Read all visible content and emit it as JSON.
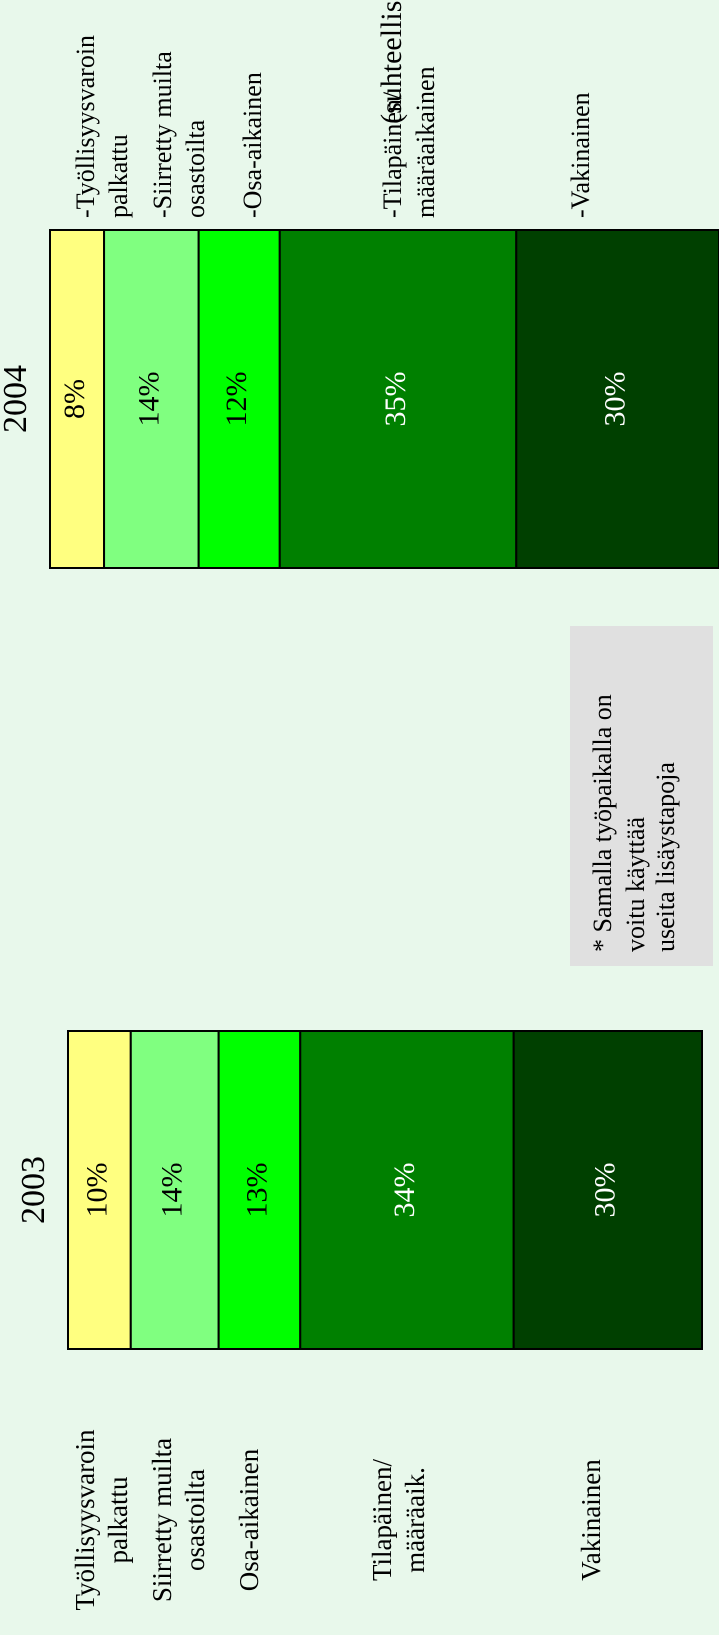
{
  "chart_data": {
    "type": "bar",
    "stacked": true,
    "orientation": "horizontal",
    "subtitle_fragment": "(suhteelliset osuudet)",
    "categories": [
      "2003",
      "2004"
    ],
    "series": [
      {
        "name": "Työllisyysvaroin palkattu",
        "values": [
          10,
          8
        ],
        "color": "#ffff80"
      },
      {
        "name": "Siirretty muilta osastoilta",
        "values": [
          14,
          14
        ],
        "color": "#80ff80"
      },
      {
        "name": "Osa-aikainen",
        "values": [
          13,
          12
        ],
        "color": "#00ff00"
      },
      {
        "name": "Tilapäinen/ määräaik.",
        "values": [
          34,
          35
        ],
        "color": "#008000"
      },
      {
        "name": "Vakinainen",
        "values": [
          30,
          30
        ],
        "color": "#004000"
      }
    ],
    "value_labels": [
      [
        "10%",
        "14%",
        "13%",
        "34%",
        "30%"
      ],
      [
        "8%",
        "14%",
        "12%",
        "35%",
        "30%"
      ]
    ],
    "legend_2003": [
      [
        "Työllisyysvaroin",
        "palkattu"
      ],
      [
        "Siirretty muilta",
        "osastoilta"
      ],
      [
        "Osa-aikainen"
      ],
      [
        "Tilapäinen/",
        "määräaik."
      ],
      [
        "Vakinainen"
      ]
    ],
    "legend_2004": [
      [
        "-Työllisyysvaroin",
        "palkattu"
      ],
      [
        "-Siirretty muilta",
        "osastoilta"
      ],
      [
        "-Osa-aikainen"
      ],
      [
        "-Tilapäinen/",
        "määräaikainen"
      ],
      [
        "-Vakinainen"
      ]
    ],
    "note_lines": [
      "* Samalla työpaikalla on",
      "voitu käyttää",
      "useita lisäystapoja"
    ],
    "note_bg": "#e0e0e0",
    "bg": "#e8f8eb",
    "rotated": "-90deg"
  }
}
